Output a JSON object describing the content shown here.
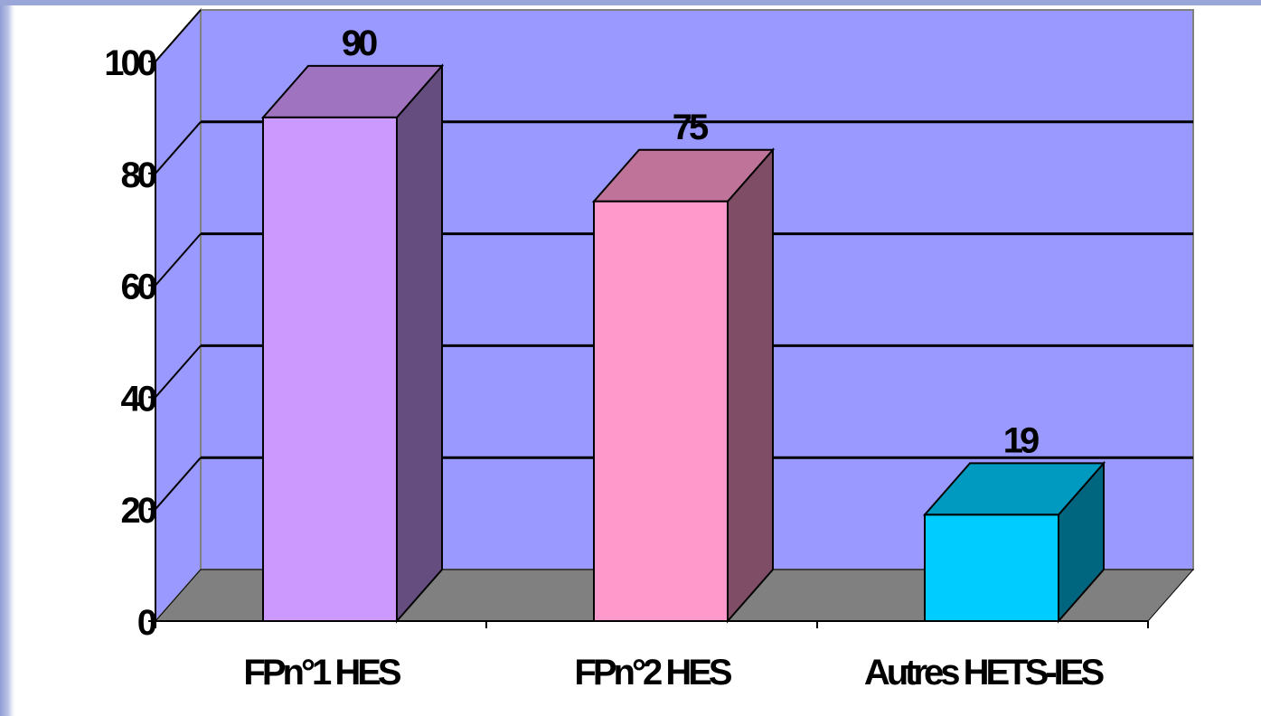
{
  "chart_data": {
    "type": "bar",
    "title": "",
    "xlabel": "",
    "ylabel": "",
    "categories": [
      "FPn°1 HES",
      "FPn°2 HES",
      "Autres HETS-IES"
    ],
    "values": [
      90,
      75,
      19
    ],
    "data_labels": [
      "90",
      "75",
      "19"
    ],
    "ylim": [
      0,
      100
    ],
    "yticks": [
      0,
      20,
      40,
      60,
      80,
      100
    ],
    "ytick_labels": [
      "0",
      "20",
      "40",
      "60",
      "80",
      "100"
    ],
    "grid": true,
    "legend": "none",
    "three_d": true
  },
  "colors": {
    "background_left": "#9aa6d8",
    "wall": "#9999ff",
    "floor": "#808080",
    "gridline": "#000000",
    "bar_front": [
      "#cc99ff",
      "#ff99cc",
      "#00ccff"
    ],
    "bar_top": [
      "#9f73bf",
      "#bf7399",
      "#0099bf"
    ],
    "bar_side": [
      "#664d80",
      "#804d66",
      "#006680"
    ]
  }
}
